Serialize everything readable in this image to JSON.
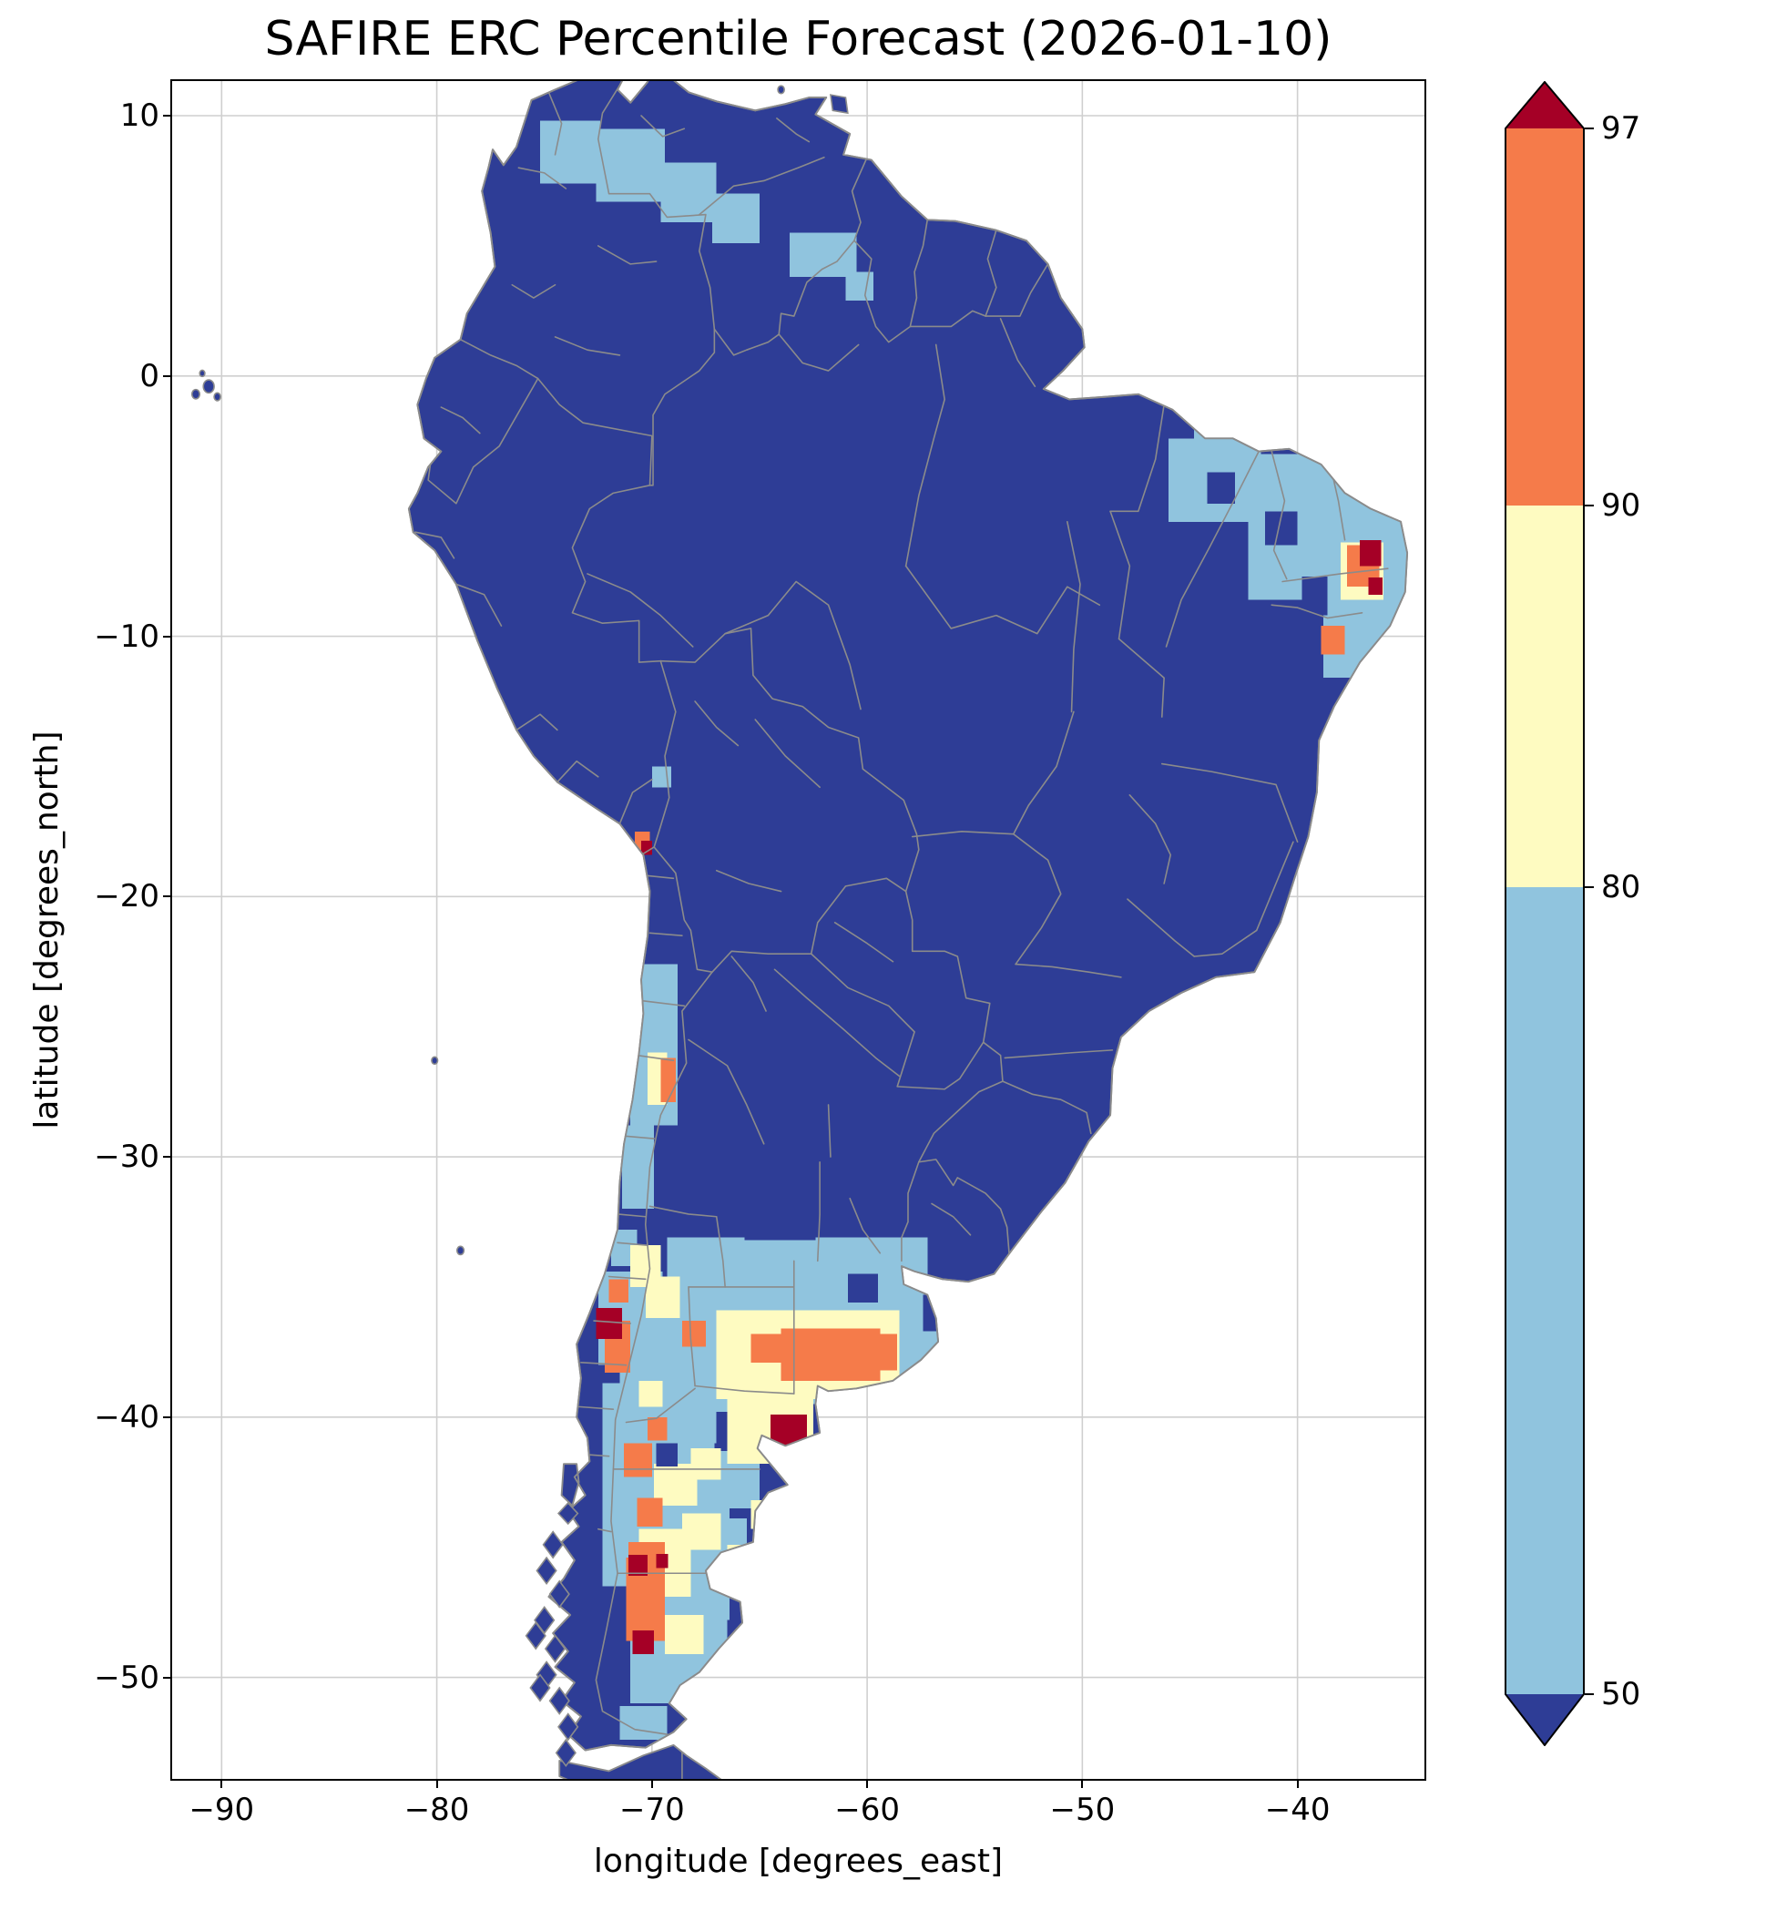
{
  "chart_data": {
    "type": "heatmap",
    "title": "SAFIRE ERC Percentile Forecast (2026-01-10)",
    "xlabel": "longitude [degrees_east]",
    "ylabel": "latitude [degrees_north]",
    "xlim": [
      -92.3,
      -34.1
    ],
    "ylim": [
      -53.9,
      11.3
    ],
    "grid": true,
    "xticks": [
      {
        "value": -90,
        "label": "−90"
      },
      {
        "value": -80,
        "label": "−80"
      },
      {
        "value": -70,
        "label": "−70"
      },
      {
        "value": -60,
        "label": "−60"
      },
      {
        "value": -50,
        "label": "−50"
      },
      {
        "value": -40,
        "label": "−40"
      }
    ],
    "yticks": [
      {
        "value": 10,
        "label": "10"
      },
      {
        "value": 0,
        "label": "0"
      },
      {
        "value": -10,
        "label": "−10"
      },
      {
        "value": -20,
        "label": "−20"
      },
      {
        "value": -30,
        "label": "−30"
      },
      {
        "value": -40,
        "label": "−40"
      },
      {
        "value": -50,
        "label": "−50"
      }
    ],
    "colorbar": {
      "extend": "both",
      "ticks": [
        {
          "label": "97"
        },
        {
          "label": "90"
        },
        {
          "label": "80"
        },
        {
          "label": "50"
        }
      ],
      "classes": [
        {
          "range": ">97",
          "color": "#a50026"
        },
        {
          "range": "90–97",
          "color": "#f57b4a"
        },
        {
          "range": "80–90",
          "color": "#fefbc1"
        },
        {
          "range": "50–80",
          "color": "#90c4de"
        },
        {
          "range": "<50",
          "color": "#2e3d96"
        }
      ]
    },
    "levels": [
      50,
      80,
      90,
      97
    ],
    "palette": {
      "r": "#a50026",
      "o": "#f57b4a",
      "y": "#fefbc1",
      "b": "#90c4de",
      "n": "#2e3d96"
    },
    "base_class": "<50",
    "boundary_color": "#8b8b8b",
    "grid_color": "#cfcfcf",
    "cell_format": "[lon_min, lat_min, width_deg, height_deg, class]",
    "cells": [
      [
        -75.2,
        7.4,
        2.8,
        2.4,
        "b"
      ],
      [
        -72.6,
        6.7,
        3.2,
        2.8,
        "b"
      ],
      [
        -69.6,
        5.9,
        2.6,
        2.3,
        "b"
      ],
      [
        -67.2,
        5.1,
        2.2,
        1.9,
        "b"
      ],
      [
        -63.6,
        3.8,
        3.1,
        1.7,
        "b"
      ],
      [
        -61.0,
        2.9,
        1.3,
        1.1,
        "b"
      ],
      [
        -46.0,
        -5.6,
        4.3,
        3.2,
        "b"
      ],
      [
        -42.3,
        -8.6,
        4.3,
        5.6,
        "b"
      ],
      [
        -38.8,
        -11.6,
        3.6,
        8.2,
        "b"
      ],
      [
        -36.2,
        -10.4,
        1.6,
        5.2,
        "b"
      ],
      [
        -44.8,
        -3.4,
        2.2,
        1.4,
        "b"
      ],
      [
        -71.0,
        -28.8,
        2.2,
        6.2,
        "b"
      ],
      [
        -71.4,
        -32.0,
        1.5,
        3.2,
        "b"
      ],
      [
        -71.9,
        -34.2,
        1.2,
        1.4,
        "b"
      ],
      [
        -72.5,
        -38.0,
        3.0,
        3.6,
        "b"
      ],
      [
        -71.5,
        -41.0,
        4.5,
        5.2,
        "b"
      ],
      [
        -68.0,
        -39.8,
        5.0,
        5.6,
        "b"
      ],
      [
        -63.2,
        -39.5,
        5.8,
        4.6,
        "b"
      ],
      [
        -69.3,
        -36.3,
        3.6,
        3.2,
        "b"
      ],
      [
        -66.3,
        -35.8,
        4.5,
        2.6,
        "b"
      ],
      [
        -62.4,
        -35.3,
        5.2,
        2.2,
        "b"
      ],
      [
        -58.6,
        -39.0,
        2.2,
        2.3,
        "b"
      ],
      [
        -72.3,
        -46.5,
        4.6,
        7.8,
        "b"
      ],
      [
        -71.0,
        -51.0,
        4.5,
        4.6,
        "b"
      ],
      [
        -69.3,
        -47.8,
        2.9,
        5.6,
        "b"
      ],
      [
        -71.3,
        -43.2,
        4.2,
        4.4,
        "b"
      ],
      [
        -67.0,
        -43.5,
        2.0,
        2.2,
        "b"
      ],
      [
        -67.8,
        -46.3,
        2.2,
        2.4,
        "b"
      ],
      [
        -66.0,
        -41.8,
        2.2,
        2.0,
        "b"
      ],
      [
        -70.0,
        -15.8,
        0.9,
        0.8,
        "b"
      ],
      [
        -71.5,
        -52.4,
        2.2,
        1.3,
        "b"
      ],
      [
        -67.0,
        -39.3,
        8.5,
        3.4,
        "y"
      ],
      [
        -66.5,
        -41.8,
        4.0,
        2.6,
        "y"
      ],
      [
        -70.3,
        -36.2,
        1.6,
        1.6,
        "y"
      ],
      [
        -71.0,
        -35.0,
        1.4,
        1.6,
        "y"
      ],
      [
        -69.9,
        -43.4,
        2.0,
        1.6,
        "y"
      ],
      [
        -68.6,
        -45.1,
        1.8,
        1.4,
        "y"
      ],
      [
        -70.6,
        -46.9,
        2.4,
        2.6,
        "y"
      ],
      [
        -69.4,
        -49.1,
        1.8,
        1.5,
        "y"
      ],
      [
        -68.2,
        -42.4,
        1.4,
        1.2,
        "y"
      ],
      [
        -38.0,
        -8.6,
        2.0,
        2.2,
        "y"
      ],
      [
        -70.2,
        -28.0,
        0.9,
        2.0,
        "y"
      ],
      [
        -65.4,
        -44.3,
        1.3,
        1.1,
        "y"
      ],
      [
        -66.5,
        -45.9,
        1.2,
        1.0,
        "y"
      ],
      [
        -70.6,
        -39.6,
        1.1,
        1.0,
        "y"
      ],
      [
        -64.0,
        -38.6,
        4.6,
        2.0,
        "o"
      ],
      [
        -60.8,
        -38.2,
        2.2,
        1.4,
        "o"
      ],
      [
        -65.4,
        -37.9,
        1.6,
        1.1,
        "o"
      ],
      [
        -71.2,
        -48.6,
        1.8,
        3.2,
        "o"
      ],
      [
        -71.1,
        -46.5,
        1.7,
        1.7,
        "o"
      ],
      [
        -70.7,
        -44.2,
        1.2,
        1.1,
        "o"
      ],
      [
        -71.3,
        -42.3,
        1.3,
        1.3,
        "o"
      ],
      [
        -72.2,
        -38.3,
        1.2,
        2.0,
        "o"
      ],
      [
        -69.6,
        -27.9,
        0.7,
        1.7,
        "o"
      ],
      [
        -37.7,
        -8.1,
        1.5,
        1.6,
        "o"
      ],
      [
        -38.9,
        -10.7,
        1.1,
        1.1,
        "o"
      ],
      [
        -70.8,
        -18.2,
        0.7,
        0.7,
        "o"
      ],
      [
        -72.0,
        -35.6,
        0.9,
        0.9,
        "o"
      ],
      [
        -70.2,
        -40.9,
        0.9,
        0.9,
        "o"
      ],
      [
        -68.6,
        -37.3,
        1.1,
        1.0,
        "o"
      ],
      [
        -41.5,
        -6.5,
        1.5,
        1.3,
        "n"
      ],
      [
        -39.8,
        -9.2,
        1.2,
        1.5,
        "n"
      ],
      [
        -44.2,
        -4.9,
        1.3,
        1.2,
        "n"
      ],
      [
        -60.9,
        -35.6,
        1.4,
        1.1,
        "n"
      ],
      [
        -69.8,
        -41.9,
        1.0,
        0.9,
        "n"
      ],
      [
        -64.5,
        -41.2,
        1.7,
        1.3,
        "r"
      ],
      [
        -72.6,
        -37.0,
        1.2,
        1.2,
        "r"
      ],
      [
        -71.1,
        -46.1,
        0.9,
        0.8,
        "r"
      ],
      [
        -70.9,
        -49.1,
        1.0,
        0.9,
        "r"
      ],
      [
        -69.8,
        -45.8,
        0.55,
        0.55,
        "r"
      ],
      [
        -37.1,
        -7.3,
        1.0,
        1.0,
        "r"
      ],
      [
        -36.7,
        -8.4,
        0.65,
        0.65,
        "r"
      ],
      [
        -70.5,
        -18.4,
        0.5,
        0.55,
        "r"
      ]
    ]
  }
}
